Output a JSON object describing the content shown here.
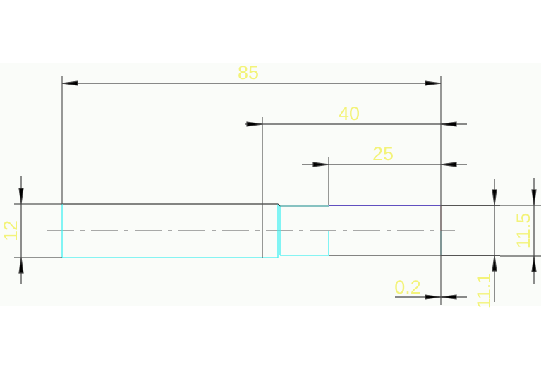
{
  "drawing": {
    "dimensions": {
      "overall_length": "85",
      "length_40": "40",
      "length_25": "25",
      "diameter_left": "12",
      "offset": "0.2",
      "diameter_11_1": "11.1",
      "diameter_11_5": "11.5"
    },
    "colors": {
      "background": "#fafcf9",
      "geometry": "#3c3c3c",
      "edge_cyan": "#40f0f0",
      "edge_purple": "#6050c0",
      "edge_red": "#c07070",
      "dimension_text": "#f3f37a"
    }
  }
}
